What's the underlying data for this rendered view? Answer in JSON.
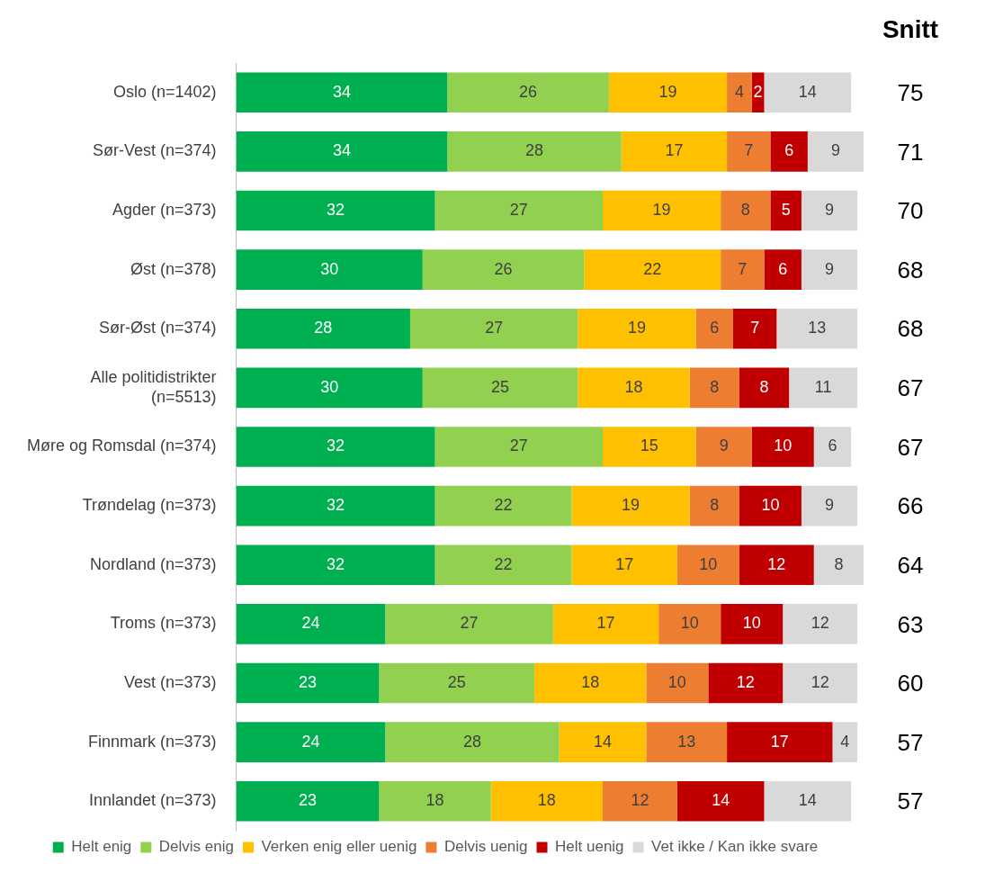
{
  "chart_data": {
    "type": "bar",
    "orientation": "horizontal",
    "stacked": true,
    "data_labels": true,
    "legend": "bottom",
    "categories": [
      "Oslo (n=1402)",
      "Sør-Vest (n=374)",
      "Agder (n=373)",
      "Øst (n=378)",
      "Sør-Øst (n=374)",
      "Alle politidistrikter (n=5513)",
      "Møre og Romsdal (n=374)",
      "Trøndelag (n=373)",
      "Nordland (n=373)",
      "Troms (n=373)",
      "Vest (n=373)",
      "Finnmark (n=373)",
      "Innlandet (n=373)"
    ],
    "series": [
      {
        "name": "Helt enig",
        "color": "#00b050",
        "values": [
          34,
          34,
          32,
          30,
          28,
          30,
          32,
          32,
          32,
          24,
          23,
          24,
          23
        ]
      },
      {
        "name": "Delvis enig",
        "color": "#92d050",
        "values": [
          26,
          28,
          27,
          26,
          27,
          25,
          27,
          22,
          22,
          27,
          25,
          28,
          18
        ]
      },
      {
        "name": "Verken enig eller uenig",
        "color": "#ffc000",
        "values": [
          19,
          17,
          19,
          22,
          19,
          18,
          15,
          19,
          17,
          17,
          18,
          14,
          18
        ]
      },
      {
        "name": "Delvis uenig",
        "color": "#ed7d31",
        "values": [
          4,
          7,
          8,
          7,
          6,
          8,
          9,
          8,
          10,
          10,
          10,
          13,
          12
        ]
      },
      {
        "name": "Helt uenig",
        "color": "#c00000",
        "values": [
          2,
          6,
          5,
          6,
          7,
          8,
          10,
          10,
          12,
          10,
          12,
          17,
          14
        ]
      },
      {
        "name": "Vet ikke / Kan ikke svare",
        "color": "#d9d9d9",
        "values": [
          14,
          9,
          9,
          9,
          13,
          11,
          6,
          9,
          8,
          12,
          12,
          4,
          14
        ]
      }
    ],
    "annotations": [
      "Snitt",
      "75",
      "71",
      "70",
      "68",
      "68",
      "67",
      "67",
      "66",
      "64",
      "63",
      "60",
      "57",
      "57"
    ]
  }
}
